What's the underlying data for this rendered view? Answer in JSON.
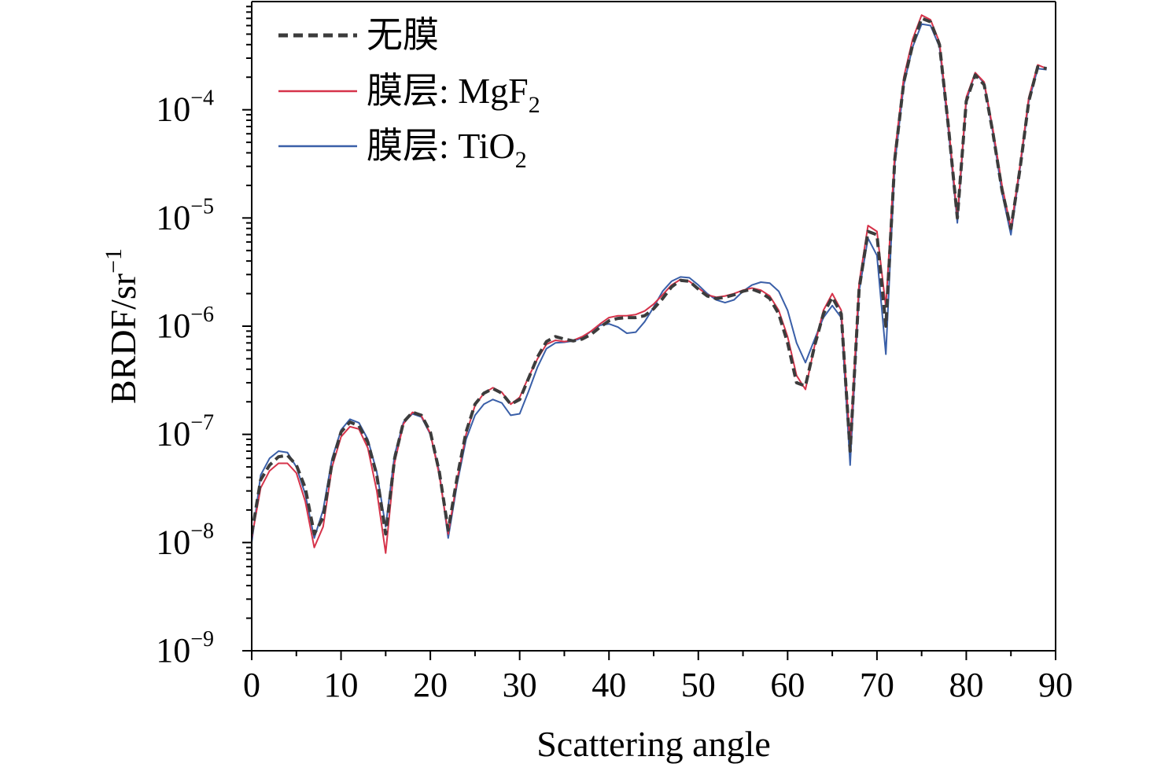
{
  "chart_data": {
    "type": "line",
    "xlabel": "Scattering angle",
    "ylabel": {
      "base": "BRDF/sr",
      "sup": "−1"
    },
    "xlim": [
      0,
      90
    ],
    "ylim": [
      1e-09,
      0.001
    ],
    "yscale": "log",
    "x_ticks": [
      {
        "value": 0,
        "label": "0"
      },
      {
        "value": 10,
        "label": "10"
      },
      {
        "value": 20,
        "label": "20"
      },
      {
        "value": 30,
        "label": "30"
      },
      {
        "value": 40,
        "label": "40"
      },
      {
        "value": 50,
        "label": "50"
      },
      {
        "value": 60,
        "label": "60"
      },
      {
        "value": 70,
        "label": "70"
      },
      {
        "value": 80,
        "label": "80"
      },
      {
        "value": 90,
        "label": "90"
      }
    ],
    "y_ticks": [
      {
        "value": 1e-09,
        "base": "10",
        "exp": "−9"
      },
      {
        "value": 1e-08,
        "base": "10",
        "exp": "−8"
      },
      {
        "value": 1e-07,
        "base": "10",
        "exp": "−7"
      },
      {
        "value": 1e-06,
        "base": "10",
        "exp": "−6"
      },
      {
        "value": 1e-05,
        "base": "10",
        "exp": "−5"
      },
      {
        "value": 0.0001,
        "base": "10",
        "exp": "−4"
      }
    ],
    "grid": false,
    "legend_position": "top-left",
    "series": [
      {
        "name": "无膜",
        "legend_sub": "",
        "color": "#3c3c3c",
        "dash": "dashed",
        "points": [
          [
            0,
            1.2e-08
          ],
          [
            1,
            3.8e-08
          ],
          [
            2,
            5.2e-08
          ],
          [
            3,
            6.2e-08
          ],
          [
            4,
            6.4e-08
          ],
          [
            5,
            5.2e-08
          ],
          [
            6,
            3.2e-08
          ],
          [
            7,
            1.2e-08
          ],
          [
            8,
            1.7e-08
          ],
          [
            9,
            5.5e-08
          ],
          [
            10,
            1.05e-07
          ],
          [
            11,
            1.3e-07
          ],
          [
            12,
            1.2e-07
          ],
          [
            13,
            8.5e-08
          ],
          [
            14,
            4.2e-08
          ],
          [
            15,
            1.2e-08
          ],
          [
            16,
            6e-08
          ],
          [
            17,
            1.3e-07
          ],
          [
            18,
            1.6e-07
          ],
          [
            19,
            1.5e-07
          ],
          [
            20,
            1.05e-07
          ],
          [
            21,
            4.5e-08
          ],
          [
            22,
            1.3e-08
          ],
          [
            23,
            4e-08
          ],
          [
            24,
            1.05e-07
          ],
          [
            25,
            1.9e-07
          ],
          [
            26,
            2.4e-07
          ],
          [
            27,
            2.65e-07
          ],
          [
            28,
            2.4e-07
          ],
          [
            29,
            1.9e-07
          ],
          [
            30,
            2.1e-07
          ],
          [
            31,
            3.3e-07
          ],
          [
            32,
            5.2e-07
          ],
          [
            33,
            7.2e-07
          ],
          [
            34,
            8e-07
          ],
          [
            35,
            7.6e-07
          ],
          [
            36,
            7.3e-07
          ],
          [
            37,
            7.6e-07
          ],
          [
            38,
            8.4e-07
          ],
          [
            39,
            9.8e-07
          ],
          [
            40,
            1.12e-06
          ],
          [
            41,
            1.18e-06
          ],
          [
            42,
            1.2e-06
          ],
          [
            43,
            1.2e-06
          ],
          [
            44,
            1.25e-06
          ],
          [
            45,
            1.45e-06
          ],
          [
            46,
            1.8e-06
          ],
          [
            47,
            2.3e-06
          ],
          [
            48,
            2.65e-06
          ],
          [
            49,
            2.6e-06
          ],
          [
            50,
            2.2e-06
          ],
          [
            51,
            1.9e-06
          ],
          [
            52,
            1.8e-06
          ],
          [
            53,
            1.85e-06
          ],
          [
            54,
            1.95e-06
          ],
          [
            55,
            2.1e-06
          ],
          [
            56,
            2.2e-06
          ],
          [
            57,
            2.05e-06
          ],
          [
            58,
            1.8e-06
          ],
          [
            59,
            1.3e-06
          ],
          [
            60,
            7e-07
          ],
          [
            61,
            3e-07
          ],
          [
            62,
            2.8e-07
          ],
          [
            63,
            6.5e-07
          ],
          [
            64,
            1.3e-06
          ],
          [
            65,
            1.85e-06
          ],
          [
            66,
            1.3e-06
          ],
          [
            67,
            7e-08
          ],
          [
            68,
            2.2e-06
          ],
          [
            69,
            7.5e-06
          ],
          [
            70,
            7e-06
          ],
          [
            71,
            1e-06
          ],
          [
            72,
            3.5e-05
          ],
          [
            73,
            0.00018
          ],
          [
            74,
            0.0004
          ],
          [
            75,
            0.0007
          ],
          [
            76,
            0.00065
          ],
          [
            77,
            0.0004
          ],
          [
            78,
            7e-05
          ],
          [
            79,
            1e-05
          ],
          [
            80,
            0.00012
          ],
          [
            81,
            0.00021
          ],
          [
            82,
            0.00017
          ],
          [
            83,
            6e-05
          ],
          [
            84,
            1.8e-05
          ],
          [
            85,
            8e-06
          ],
          [
            86,
            2.8e-05
          ],
          [
            87,
            0.00012
          ],
          [
            88,
            0.00025
          ],
          [
            89,
            0.00024
          ]
        ]
      },
      {
        "name": "膜层: MgF",
        "legend_sub": "2",
        "color": "#d6334a",
        "dash": "solid",
        "points": [
          [
            0,
            1.1e-08
          ],
          [
            1,
            3.2e-08
          ],
          [
            2,
            4.6e-08
          ],
          [
            3,
            5.4e-08
          ],
          [
            4,
            5.4e-08
          ],
          [
            5,
            4.4e-08
          ],
          [
            6,
            2.4e-08
          ],
          [
            7,
            9e-09
          ],
          [
            8,
            1.4e-08
          ],
          [
            9,
            5e-08
          ],
          [
            10,
            9.5e-08
          ],
          [
            11,
            1.18e-07
          ],
          [
            12,
            1.12e-07
          ],
          [
            13,
            7.5e-08
          ],
          [
            14,
            3e-08
          ],
          [
            15,
            8e-09
          ],
          [
            16,
            5.5e-08
          ],
          [
            17,
            1.25e-07
          ],
          [
            18,
            1.6e-07
          ],
          [
            19,
            1.48e-07
          ],
          [
            20,
            1.02e-07
          ],
          [
            21,
            4.2e-08
          ],
          [
            22,
            1.2e-08
          ],
          [
            23,
            3.8e-08
          ],
          [
            24,
            1e-07
          ],
          [
            25,
            1.85e-07
          ],
          [
            26,
            2.4e-07
          ],
          [
            27,
            2.7e-07
          ],
          [
            28,
            2.45e-07
          ],
          [
            29,
            1.9e-07
          ],
          [
            30,
            2.2e-07
          ],
          [
            31,
            3.4e-07
          ],
          [
            32,
            5e-07
          ],
          [
            33,
            6.8e-07
          ],
          [
            34,
            7.4e-07
          ],
          [
            35,
            7.2e-07
          ],
          [
            36,
            7.4e-07
          ],
          [
            37,
            8e-07
          ],
          [
            38,
            9e-07
          ],
          [
            39,
            1.05e-06
          ],
          [
            40,
            1.2e-06
          ],
          [
            41,
            1.25e-06
          ],
          [
            42,
            1.25e-06
          ],
          [
            43,
            1.28e-06
          ],
          [
            44,
            1.38e-06
          ],
          [
            45,
            1.6e-06
          ],
          [
            46,
            1.95e-06
          ],
          [
            47,
            2.4e-06
          ],
          [
            48,
            2.7e-06
          ],
          [
            49,
            2.6e-06
          ],
          [
            50,
            2.25e-06
          ],
          [
            51,
            1.95e-06
          ],
          [
            52,
            1.85e-06
          ],
          [
            53,
            1.9e-06
          ],
          [
            54,
            2e-06
          ],
          [
            55,
            2.15e-06
          ],
          [
            56,
            2.25e-06
          ],
          [
            57,
            2.15e-06
          ],
          [
            58,
            1.9e-06
          ],
          [
            59,
            1.4e-06
          ],
          [
            60,
            8e-07
          ],
          [
            61,
            3.5e-07
          ],
          [
            62,
            2.6e-07
          ],
          [
            63,
            6.5e-07
          ],
          [
            64,
            1.4e-06
          ],
          [
            65,
            2e-06
          ],
          [
            66,
            1.4e-06
          ],
          [
            67,
            8e-08
          ],
          [
            68,
            2.5e-06
          ],
          [
            69,
            8.5e-06
          ],
          [
            70,
            7.5e-06
          ],
          [
            71,
            1.5e-06
          ],
          [
            72,
            4e-05
          ],
          [
            73,
            0.0002
          ],
          [
            74,
            0.00045
          ],
          [
            75,
            0.00075
          ],
          [
            76,
            0.00068
          ],
          [
            77,
            0.00042
          ],
          [
            78,
            7.5e-05
          ],
          [
            79,
            1e-05
          ],
          [
            80,
            0.00013
          ],
          [
            81,
            0.00022
          ],
          [
            82,
            0.00018
          ],
          [
            83,
            6.5e-05
          ],
          [
            84,
            2e-05
          ],
          [
            85,
            8e-06
          ],
          [
            86,
            3e-05
          ],
          [
            87,
            0.00013
          ],
          [
            88,
            0.00026
          ],
          [
            89,
            0.00024
          ]
        ]
      },
      {
        "name": "膜层: TiO",
        "legend_sub": "2",
        "color": "#3a5fa8",
        "dash": "solid",
        "points": [
          [
            0,
            1e-08
          ],
          [
            1,
            4.2e-08
          ],
          [
            2,
            6e-08
          ],
          [
            3,
            7e-08
          ],
          [
            4,
            6.8e-08
          ],
          [
            5,
            5e-08
          ],
          [
            6,
            2.8e-08
          ],
          [
            7,
            1.1e-08
          ],
          [
            8,
            2e-08
          ],
          [
            9,
            6e-08
          ],
          [
            10,
            1.1e-07
          ],
          [
            11,
            1.38e-07
          ],
          [
            12,
            1.28e-07
          ],
          [
            13,
            9e-08
          ],
          [
            14,
            4.5e-08
          ],
          [
            15,
            1.4e-08
          ],
          [
            16,
            6.5e-08
          ],
          [
            17,
            1.3e-07
          ],
          [
            18,
            1.55e-07
          ],
          [
            19,
            1.45e-07
          ],
          [
            20,
            1e-07
          ],
          [
            21,
            4.5e-08
          ],
          [
            22,
            1.1e-08
          ],
          [
            23,
            3.5e-08
          ],
          [
            24,
            9e-08
          ],
          [
            25,
            1.5e-07
          ],
          [
            26,
            1.9e-07
          ],
          [
            27,
            2.1e-07
          ],
          [
            28,
            1.95e-07
          ],
          [
            29,
            1.5e-07
          ],
          [
            30,
            1.55e-07
          ],
          [
            31,
            2.5e-07
          ],
          [
            32,
            4.2e-07
          ],
          [
            33,
            6.2e-07
          ],
          [
            34,
            7e-07
          ],
          [
            35,
            7.1e-07
          ],
          [
            36,
            7.3e-07
          ],
          [
            37,
            7.8e-07
          ],
          [
            38,
            9e-07
          ],
          [
            39,
            1.02e-06
          ],
          [
            40,
            1.05e-06
          ],
          [
            41,
            9.8e-07
          ],
          [
            42,
            8.6e-07
          ],
          [
            43,
            8.8e-07
          ],
          [
            44,
            1.1e-06
          ],
          [
            45,
            1.5e-06
          ],
          [
            46,
            2.1e-06
          ],
          [
            47,
            2.6e-06
          ],
          [
            48,
            2.85e-06
          ],
          [
            49,
            2.8e-06
          ],
          [
            50,
            2.4e-06
          ],
          [
            51,
            2e-06
          ],
          [
            52,
            1.75e-06
          ],
          [
            53,
            1.65e-06
          ],
          [
            54,
            1.75e-06
          ],
          [
            55,
            2.1e-06
          ],
          [
            56,
            2.4e-06
          ],
          [
            57,
            2.55e-06
          ],
          [
            58,
            2.5e-06
          ],
          [
            59,
            2.1e-06
          ],
          [
            60,
            1.4e-06
          ],
          [
            61,
            7e-07
          ],
          [
            62,
            4.6e-07
          ],
          [
            63,
            7.5e-07
          ],
          [
            64,
            1.2e-06
          ],
          [
            65,
            1.55e-06
          ],
          [
            66,
            1.2e-06
          ],
          [
            67,
            5.2e-08
          ],
          [
            68,
            2.1e-06
          ],
          [
            69,
            6.5e-06
          ],
          [
            70,
            4.5e-06
          ],
          [
            71,
            5.5e-07
          ],
          [
            72,
            3.2e-05
          ],
          [
            73,
            0.00017
          ],
          [
            74,
            0.00038
          ],
          [
            75,
            0.00062
          ],
          [
            76,
            0.0006
          ],
          [
            77,
            0.00038
          ],
          [
            78,
            6.5e-05
          ],
          [
            79,
            9e-06
          ],
          [
            80,
            0.00012
          ],
          [
            81,
            0.00022
          ],
          [
            82,
            0.000175
          ],
          [
            83,
            6e-05
          ],
          [
            84,
            1.7e-05
          ],
          [
            85,
            7e-06
          ],
          [
            86,
            2.8e-05
          ],
          [
            87,
            0.00012
          ],
          [
            88,
            0.00024
          ],
          [
            89,
            0.000235
          ]
        ]
      }
    ]
  }
}
